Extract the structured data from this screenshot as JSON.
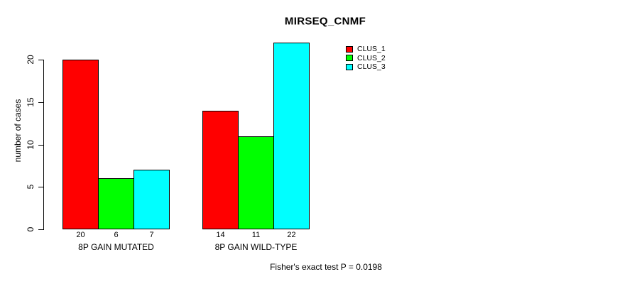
{
  "chart_data": {
    "type": "bar",
    "title": "MIRSEQ_CNMF",
    "xlabel": "",
    "ylabel": "number of cases",
    "categories": [
      "8P GAIN MUTATED",
      "8P GAIN WILD-TYPE"
    ],
    "series": [
      {
        "name": "CLUS_1",
        "color": "#ff0000",
        "values": [
          20,
          14
        ]
      },
      {
        "name": "CLUS_2",
        "color": "#00ff00",
        "values": [
          6,
          11
        ]
      },
      {
        "name": "CLUS_3",
        "color": "#00ffff",
        "values": [
          7,
          22
        ]
      }
    ],
    "bar_labels": [
      [
        "20",
        "6",
        "7"
      ],
      [
        "14",
        "11",
        "22"
      ]
    ],
    "yticks": [
      0,
      5,
      10,
      15,
      20
    ],
    "ylim": [
      0,
      20
    ],
    "grid": false,
    "legend_position": "top-right-inside",
    "annotation": "Fisher's exact test P = 0.0198"
  },
  "colors": {
    "axis": "#000000",
    "background": "#ffffff",
    "bar_border": "#000000"
  }
}
